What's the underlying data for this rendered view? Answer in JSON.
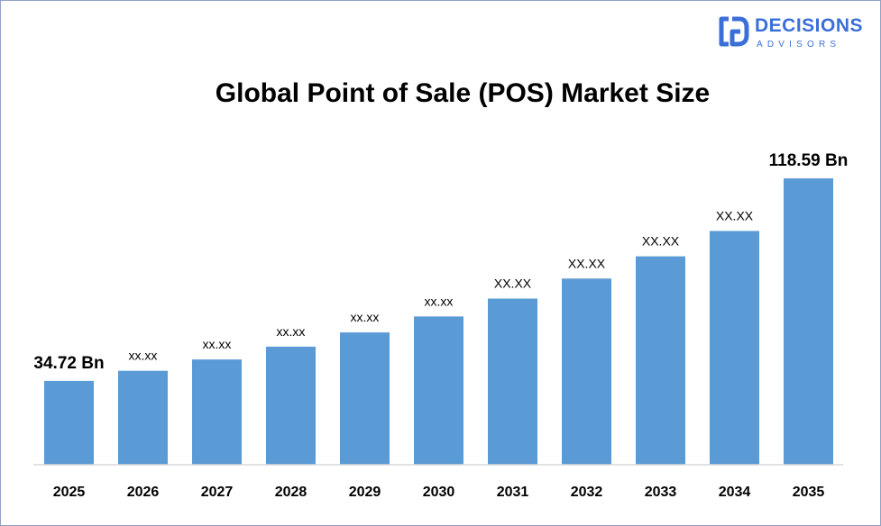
{
  "logo": {
    "brand": "DECISIONS",
    "sub": "ADVISORS",
    "icon": "decisions-advisors-logo-icon",
    "color": "#3b6fd8"
  },
  "chart_data": {
    "type": "bar",
    "title": "Global Point of Sale (POS) Market Size",
    "xlabel": "",
    "ylabel": "",
    "categories": [
      "2025",
      "2026",
      "2027",
      "2028",
      "2029",
      "2030",
      "2031",
      "2032",
      "2033",
      "2034",
      "2035"
    ],
    "values": [
      34.72,
      38.9,
      43.6,
      48.9,
      54.8,
      61.4,
      68.8,
      77.1,
      86.3,
      96.8,
      118.59
    ],
    "data_labels": [
      "34.72 Bn",
      "xx.xx",
      "xx.xx",
      "xx.xx",
      "xx.xx",
      "xx.xx",
      "XX.XX",
      "XX.XX",
      "XX.XX",
      "XX.XX",
      "118.59 Bn"
    ],
    "ylim": [
      0,
      118.59
    ],
    "grid": false,
    "legend": "none",
    "bar_color": "#5b9bd5"
  }
}
